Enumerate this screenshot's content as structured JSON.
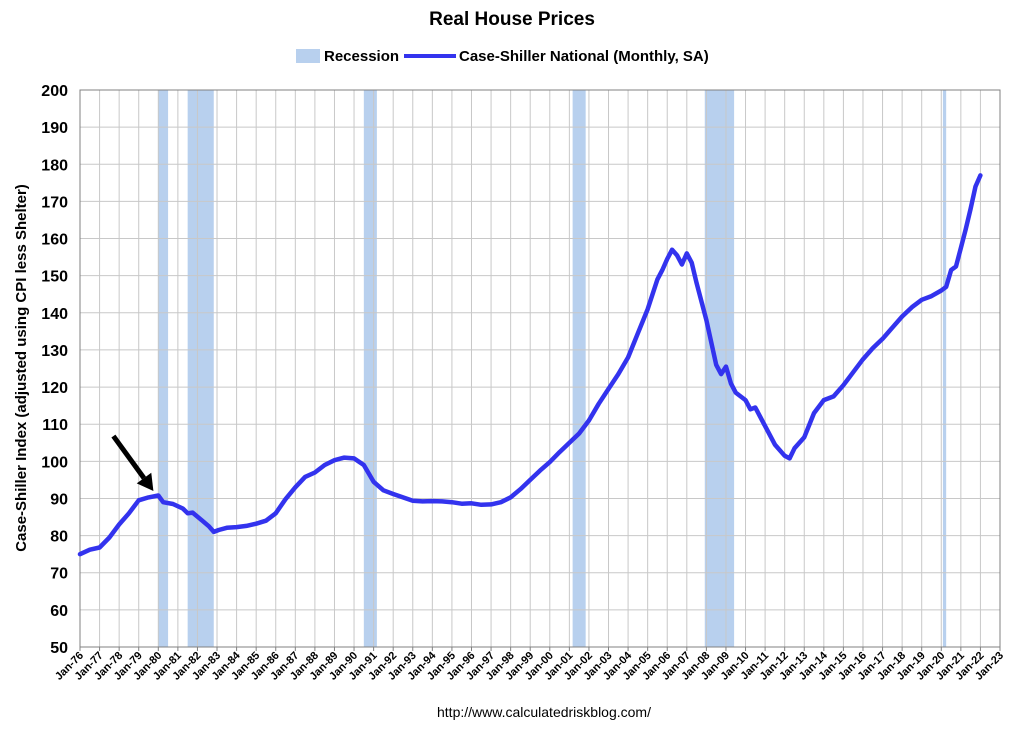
{
  "chart_data": {
    "type": "line",
    "title": "Real House Prices",
    "ylabel": "Case-Shiller Index (adjusted using CPI less Shelter)",
    "xlabel": "",
    "ylim": [
      50,
      200
    ],
    "yticks": [
      "50",
      "60",
      "70",
      "80",
      "90",
      "100",
      "110",
      "120",
      "130",
      "140",
      "150",
      "160",
      "170",
      "180",
      "190",
      "200"
    ],
    "xticks": [
      "Jan-76",
      "Jan-77",
      "Jan-78",
      "Jan-79",
      "Jan-80",
      "Jan-81",
      "Jan-82",
      "Jan-83",
      "Jan-84",
      "Jan-85",
      "Jan-86",
      "Jan-87",
      "Jan-88",
      "Jan-89",
      "Jan-90",
      "Jan-91",
      "Jan-92",
      "Jan-93",
      "Jan-94",
      "Jan-95",
      "Jan-96",
      "Jan-97",
      "Jan-98",
      "Jan-99",
      "Jan-00",
      "Jan-01",
      "Jan-02",
      "Jan-03",
      "Jan-04",
      "Jan-05",
      "Jan-06",
      "Jan-07",
      "Jan-08",
      "Jan-09",
      "Jan-10",
      "Jan-11",
      "Jan-12",
      "Jan-13",
      "Jan-14",
      "Jan-15",
      "Jan-16",
      "Jan-17",
      "Jan-18",
      "Jan-19",
      "Jan-20",
      "Jan-21",
      "Jan-22",
      "Jan-23"
    ],
    "grid": true,
    "legend_position": "top",
    "legend": {
      "recession_label": "Recession",
      "series_label": "Case-Shiller National (Monthly, SA)"
    },
    "recessions": [
      {
        "start": "1980-01",
        "end": "1980-07"
      },
      {
        "start": "1981-07",
        "end": "1982-11"
      },
      {
        "start": "1990-07",
        "end": "1991-03"
      },
      {
        "start": "2001-03",
        "end": "2001-11"
      },
      {
        "start": "2007-12",
        "end": "2009-06"
      },
      {
        "start": "2020-02",
        "end": "2020-04"
      }
    ],
    "series": [
      {
        "name": "Case-Shiller National (Monthly, SA)",
        "color": "#3333ee",
        "points": [
          [
            "1976-01",
            75.0
          ],
          [
            "1976-07",
            76.2
          ],
          [
            "1977-01",
            76.8
          ],
          [
            "1977-07",
            79.5
          ],
          [
            "1978-01",
            83.0
          ],
          [
            "1978-07",
            86.0
          ],
          [
            "1979-01",
            89.5
          ],
          [
            "1979-07",
            90.3
          ],
          [
            "1980-01",
            90.8
          ],
          [
            "1980-04",
            89.0
          ],
          [
            "1980-10",
            88.5
          ],
          [
            "1981-04",
            87.3
          ],
          [
            "1981-07",
            86.0
          ],
          [
            "1981-10",
            86.2
          ],
          [
            "1982-04",
            84.0
          ],
          [
            "1982-08",
            82.5
          ],
          [
            "1982-11",
            81.0
          ],
          [
            "1983-02",
            81.5
          ],
          [
            "1983-07",
            82.1
          ],
          [
            "1984-01",
            82.3
          ],
          [
            "1984-07",
            82.6
          ],
          [
            "1985-01",
            83.2
          ],
          [
            "1985-07",
            84.0
          ],
          [
            "1986-01",
            86.0
          ],
          [
            "1986-07",
            89.8
          ],
          [
            "1987-01",
            93.0
          ],
          [
            "1987-07",
            95.8
          ],
          [
            "1988-01",
            97.0
          ],
          [
            "1988-07",
            99.0
          ],
          [
            "1989-01",
            100.3
          ],
          [
            "1989-07",
            101.0
          ],
          [
            "1990-01",
            100.8
          ],
          [
            "1990-07",
            99.0
          ],
          [
            "1991-01",
            94.5
          ],
          [
            "1991-07",
            92.2
          ],
          [
            "1992-01",
            91.2
          ],
          [
            "1992-07",
            90.3
          ],
          [
            "1993-01",
            89.4
          ],
          [
            "1993-07",
            89.2
          ],
          [
            "1994-01",
            89.3
          ],
          [
            "1994-07",
            89.2
          ],
          [
            "1995-01",
            89.0
          ],
          [
            "1995-07",
            88.6
          ],
          [
            "1996-01",
            88.7
          ],
          [
            "1996-07",
            88.3
          ],
          [
            "1997-01",
            88.4
          ],
          [
            "1997-07",
            89.0
          ],
          [
            "1998-01",
            90.3
          ],
          [
            "1998-07",
            92.5
          ],
          [
            "1999-01",
            95.0
          ],
          [
            "1999-07",
            97.5
          ],
          [
            "2000-01",
            99.8
          ],
          [
            "2000-07",
            102.5
          ],
          [
            "2001-01",
            105.0
          ],
          [
            "2001-07",
            107.5
          ],
          [
            "2002-01",
            111.0
          ],
          [
            "2002-07",
            115.5
          ],
          [
            "2003-01",
            119.5
          ],
          [
            "2003-07",
            123.5
          ],
          [
            "2004-01",
            128.0
          ],
          [
            "2004-07",
            134.5
          ],
          [
            "2005-01",
            141.0
          ],
          [
            "2005-07",
            149.0
          ],
          [
            "2005-10",
            151.5
          ],
          [
            "2006-01",
            154.5
          ],
          [
            "2006-04",
            157.0
          ],
          [
            "2006-07",
            155.5
          ],
          [
            "2006-10",
            153.0
          ],
          [
            "2007-01",
            156.0
          ],
          [
            "2007-04",
            153.5
          ],
          [
            "2007-07",
            148.0
          ],
          [
            "2008-01",
            138.0
          ],
          [
            "2008-07",
            126.0
          ],
          [
            "2008-10",
            123.5
          ],
          [
            "2009-01",
            125.5
          ],
          [
            "2009-04",
            121.0
          ],
          [
            "2009-07",
            118.5
          ],
          [
            "2010-01",
            116.5
          ],
          [
            "2010-04",
            114.0
          ],
          [
            "2010-07",
            114.5
          ],
          [
            "2011-01",
            109.5
          ],
          [
            "2011-07",
            104.5
          ],
          [
            "2012-01",
            101.5
          ],
          [
            "2012-04",
            100.8
          ],
          [
            "2012-07",
            103.5
          ],
          [
            "2013-01",
            106.5
          ],
          [
            "2013-07",
            113.0
          ],
          [
            "2014-01",
            116.5
          ],
          [
            "2014-07",
            117.5
          ],
          [
            "2015-01",
            120.5
          ],
          [
            "2015-07",
            124.0
          ],
          [
            "2016-01",
            127.5
          ],
          [
            "2016-07",
            130.5
          ],
          [
            "2017-01",
            133.0
          ],
          [
            "2017-07",
            136.0
          ],
          [
            "2018-01",
            139.0
          ],
          [
            "2018-07",
            141.5
          ],
          [
            "2019-01",
            143.5
          ],
          [
            "2019-07",
            144.5
          ],
          [
            "2020-01",
            146.0
          ],
          [
            "2020-04",
            147.0
          ],
          [
            "2020-07",
            151.5
          ],
          [
            "2020-10",
            152.5
          ],
          [
            "2021-01",
            157.5
          ],
          [
            "2021-04",
            162.5
          ],
          [
            "2021-07",
            168.0
          ],
          [
            "2021-10",
            174.0
          ],
          [
            "2022-01",
            177.0
          ]
        ]
      }
    ],
    "annotations": [
      {
        "type": "arrow",
        "target": "1979-10",
        "target_value": 92,
        "color": "#000000"
      }
    ]
  },
  "source_text": "http://www.calculatedriskblog.com/"
}
